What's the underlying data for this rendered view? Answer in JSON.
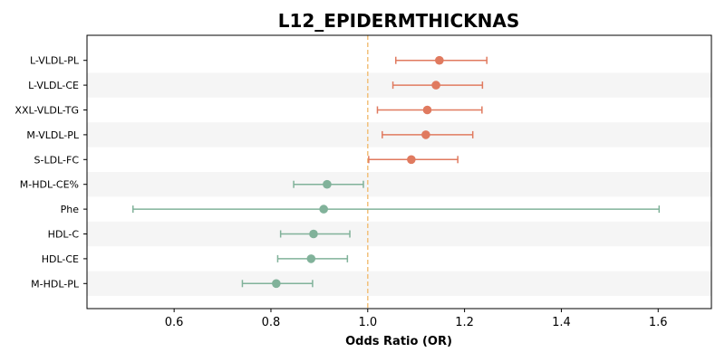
{
  "chart_data": {
    "type": "forest",
    "title": "L12_EPIDERMTHICKNAS",
    "xlabel": "Odds Ratio (OR)",
    "xlim": [
      0.42,
      1.71
    ],
    "xticks": [
      0.6,
      0.8,
      1.0,
      1.2,
      1.4,
      1.6
    ],
    "xtick_labels": [
      "0.6",
      "0.8",
      "1.0",
      "1.2",
      "1.4",
      "1.6"
    ],
    "reference_line": 1.0,
    "colors": {
      "positive": "#E07A5F",
      "negative": "#81B29A",
      "reference": "#F2C07A",
      "band": "#F5F5F5"
    },
    "rows": [
      {
        "label": "L-VLDL-PL",
        "or": 1.148,
        "lower": 1.058,
        "upper": 1.246,
        "group": "positive"
      },
      {
        "label": "L-VLDL-CE",
        "or": 1.141,
        "lower": 1.052,
        "upper": 1.237,
        "group": "positive"
      },
      {
        "label": "XXL-VLDL-TG",
        "or": 1.123,
        "lower": 1.02,
        "upper": 1.236,
        "group": "positive"
      },
      {
        "label": "M-VLDL-PL",
        "or": 1.12,
        "lower": 1.03,
        "upper": 1.217,
        "group": "positive"
      },
      {
        "label": "S-LDL-FC",
        "or": 1.09,
        "lower": 1.002,
        "upper": 1.186,
        "group": "positive"
      },
      {
        "label": "M-HDL-CE%",
        "or": 0.916,
        "lower": 0.847,
        "upper": 0.991,
        "group": "negative"
      },
      {
        "label": "Phe",
        "or": 0.909,
        "lower": 0.515,
        "upper": 1.602,
        "group": "negative"
      },
      {
        "label": "HDL-C",
        "or": 0.888,
        "lower": 0.82,
        "upper": 0.963,
        "group": "negative"
      },
      {
        "label": "HDL-CE",
        "or": 0.883,
        "lower": 0.814,
        "upper": 0.958,
        "group": "negative"
      },
      {
        "label": "M-HDL-PL",
        "or": 0.811,
        "lower": 0.741,
        "upper": 0.886,
        "group": "negative"
      }
    ]
  }
}
